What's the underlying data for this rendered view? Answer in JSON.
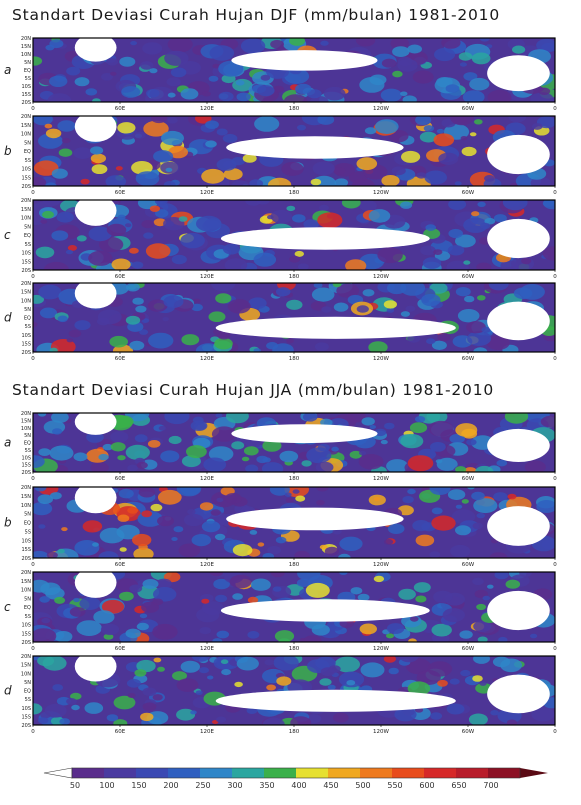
{
  "chart_data": [
    {
      "type": "heatmap",
      "title": "Standart Deviasi Curah Hujan DJF (mm/bulan) 1981-2010",
      "panels": [
        {
          "letter": "a"
        },
        {
          "letter": "b"
        },
        {
          "letter": "c"
        },
        {
          "letter": "d"
        }
      ]
    },
    {
      "type": "heatmap",
      "title": "Standart Deviasi Curah Hujan JJA (mm/bulan) 1981-2010",
      "panels": [
        {
          "letter": "a"
        },
        {
          "letter": "b"
        },
        {
          "letter": "c"
        },
        {
          "letter": "d"
        }
      ]
    }
  ],
  "axes": {
    "x_ticks": [
      "0",
      "60E",
      "120E",
      "180",
      "120W",
      "60W",
      "0"
    ],
    "y_ticks": [
      "20N",
      "15N",
      "10N",
      "5N",
      "EQ",
      "5S",
      "10S",
      "15S",
      "20S"
    ],
    "xlim": [
      0,
      360
    ],
    "ylim": [
      -20,
      20
    ]
  },
  "colorbar": {
    "labels": [
      "50",
      "100",
      "150",
      "200",
      "250",
      "300",
      "350",
      "400",
      "450",
      "500",
      "550",
      "600",
      "650",
      "700"
    ],
    "colors": [
      "#5a2d8c",
      "#4a3aa0",
      "#3a49b3",
      "#2f5fc0",
      "#2f86c8",
      "#2aa6a0",
      "#3ab04a",
      "#e6e030",
      "#f0a820",
      "#ee7a1e",
      "#e84c1c",
      "#d62828",
      "#b81c2a",
      "#8c1024"
    ],
    "under_color": "#ffffff",
    "over_color": "#5a0a14"
  }
}
